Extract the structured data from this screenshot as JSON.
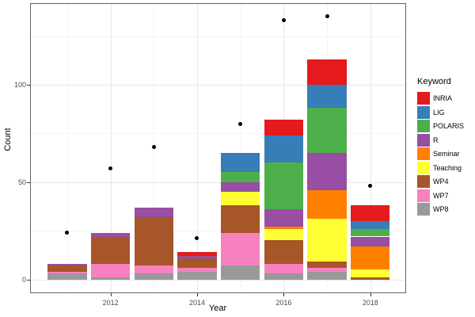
{
  "figure": {
    "x_axis_title": "Year",
    "y_axis_title": "Count"
  },
  "chart_data": {
    "type": "bar",
    "stacked": true,
    "title": "",
    "xlabel": "Year",
    "ylabel": "Count",
    "legend_title": "Keyword",
    "legend_position": "right",
    "grid": true,
    "background": "#ffffff",
    "point_color": "#000000",
    "categories": [
      2011,
      2012,
      2013,
      2014,
      2015,
      2016,
      2017,
      2018
    ],
    "x_major_ticks": [
      2012,
      2014,
      2016,
      2018
    ],
    "x_tick_labels": [
      "2012",
      "2014",
      "2016",
      "2018"
    ],
    "x_minor_gridlines": [
      2011,
      2013,
      2015,
      2017
    ],
    "y_ticks": [
      0,
      50,
      100
    ],
    "y_tick_labels": [
      "0",
      "50",
      "100"
    ],
    "y_minor_gridlines": [
      25,
      75,
      125
    ],
    "xlim": [
      2010.16,
      2018.81
    ],
    "ylim": [
      -6.7,
      141.5
    ],
    "bar_width": 0.9,
    "stack_order_bottom_to_top": [
      "WP8",
      "WP7",
      "WP4",
      "Teaching",
      "Seminar",
      "R",
      "POLARIS",
      "LIG",
      "INRIA"
    ],
    "series": [
      {
        "name": "INRIA",
        "color": "#E41A1C",
        "values": [
          0,
          0,
          0,
          2,
          0,
          8,
          13,
          8
        ]
      },
      {
        "name": "LIG",
        "color": "#377EB8",
        "values": [
          0,
          0,
          0,
          0,
          10,
          14,
          12,
          4
        ]
      },
      {
        "name": "POLARIS",
        "color": "#4DAF4A",
        "values": [
          0,
          0,
          0,
          0,
          5,
          24,
          23,
          4
        ]
      },
      {
        "name": "R",
        "color": "#984EA3",
        "values": [
          1,
          2,
          5,
          1,
          5,
          9,
          19,
          5
        ]
      },
      {
        "name": "Seminar",
        "color": "#FF7F00",
        "values": [
          0,
          0,
          0,
          0,
          0,
          1,
          15,
          12
        ]
      },
      {
        "name": "Teaching",
        "color": "#FFFF33",
        "values": [
          0,
          0,
          0,
          0,
          7,
          6,
          22,
          4
        ]
      },
      {
        "name": "WP4",
        "color": "#A65628",
        "values": [
          3,
          14,
          25,
          5,
          14,
          12,
          3,
          1
        ]
      },
      {
        "name": "WP7",
        "color": "#F781BF",
        "values": [
          1,
          7,
          4,
          2,
          17,
          5,
          2,
          0
        ]
      },
      {
        "name": "WP8",
        "color": "#999999",
        "values": [
          3,
          1,
          3,
          4,
          7,
          3,
          4,
          0
        ]
      }
    ],
    "bar_totals": [
      8,
      24,
      37,
      14,
      65,
      82,
      113,
      38
    ],
    "points_series": {
      "name": "totals-points",
      "values": [
        24,
        57,
        68,
        21,
        80,
        133,
        135,
        48
      ]
    }
  }
}
